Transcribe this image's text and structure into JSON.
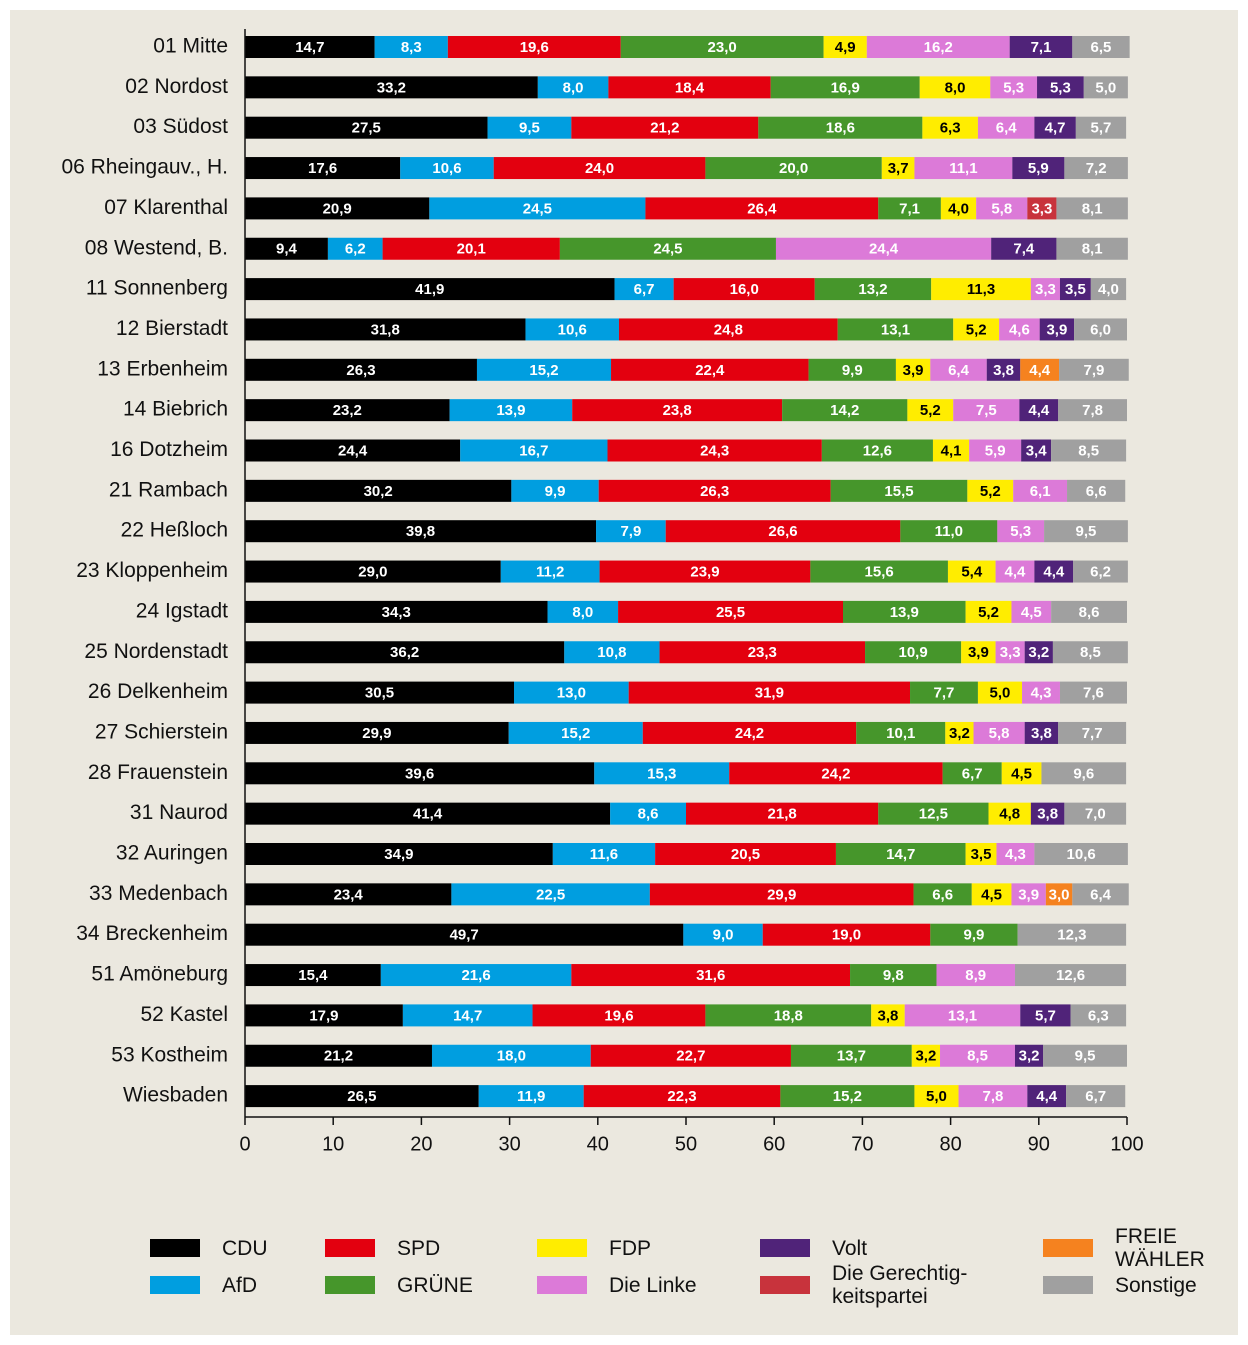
{
  "chart_data": {
    "type": "stacked-barh",
    "categories": [
      "01 Mitte",
      "02 Nordost",
      "03 Südost",
      "06 Rheingauv., H.",
      "07 Klarenthal",
      "08 Westend, B.",
      "11 Sonnenberg",
      "12 Bierstadt",
      "13 Erbenheim",
      "14 Biebrich",
      "16 Dotzheim",
      "21 Rambach",
      "22 Heßloch",
      "23 Kloppenheim",
      "24 Igstadt",
      "25 Nordenstadt",
      "26 Delkenheim",
      "27 Schierstein",
      "28 Frauenstein",
      "31 Naurod",
      "32 Auringen",
      "33 Medenbach",
      "34 Breckenheim",
      "51 Amöneburg",
      "52 Kastel",
      "53 Kostheim",
      "Wiesbaden"
    ],
    "xlim": [
      0,
      100
    ],
    "xticks": [
      0,
      10,
      20,
      30,
      40,
      50,
      60,
      70,
      80,
      90,
      100
    ],
    "series": [
      {
        "name": "CDU",
        "color": "#000000",
        "text_color": "#ffffff",
        "values": [
          14.7,
          33.2,
          27.5,
          17.6,
          20.9,
          9.4,
          41.9,
          31.8,
          26.3,
          23.2,
          24.4,
          30.2,
          39.8,
          29.0,
          34.3,
          36.2,
          30.5,
          29.9,
          39.6,
          41.4,
          34.9,
          23.4,
          49.7,
          15.4,
          17.9,
          21.2,
          26.5
        ],
        "value_labels": [
          "14,7",
          "33,2",
          "27,5",
          "17,6",
          "20,9",
          "9,4",
          "41,9",
          "31,8",
          "26,3",
          "23,2",
          "24,4",
          "30,2",
          "39,8",
          "29,0",
          "34,3",
          "36,2",
          "30,5",
          "29,9",
          "39,6",
          "41,4",
          "34,9",
          "23,4",
          "49,7",
          "15,4",
          "17,9",
          "21,2",
          "26,5"
        ]
      },
      {
        "name": "AfD",
        "color": "#009ee0",
        "text_color": "#ffffff",
        "values": [
          8.3,
          8.0,
          9.5,
          10.6,
          24.5,
          6.2,
          6.7,
          10.6,
          15.2,
          13.9,
          16.7,
          9.9,
          7.9,
          11.2,
          8.0,
          10.8,
          13.0,
          15.2,
          15.3,
          8.6,
          11.6,
          22.5,
          9.0,
          21.6,
          14.7,
          18.0,
          11.9
        ],
        "value_labels": [
          "8,3",
          "8,0",
          "9,5",
          "10,6",
          "24,5",
          "6,2",
          "6,7",
          "10,6",
          "15,2",
          "13,9",
          "16,7",
          "9,9",
          "7,9",
          "11,2",
          "8,0",
          "10,8",
          "13,0",
          "15,2",
          "15,3",
          "8,6",
          "11,6",
          "22,5",
          "9,0",
          "21,6",
          "14,7",
          "18,0",
          "11,9"
        ]
      },
      {
        "name": "SPD",
        "color": "#e3000f",
        "text_color": "#ffffff",
        "values": [
          19.6,
          18.4,
          21.2,
          24.0,
          26.4,
          20.1,
          16.0,
          24.8,
          22.4,
          23.8,
          24.3,
          26.3,
          26.6,
          23.9,
          25.5,
          23.3,
          31.9,
          24.2,
          24.2,
          21.8,
          20.5,
          29.9,
          19.0,
          31.6,
          19.6,
          22.7,
          22.3
        ],
        "value_labels": [
          "19,6",
          "18,4",
          "21,2",
          "24,0",
          "26,4",
          "20,1",
          "16,0",
          "24,8",
          "22,4",
          "23,8",
          "24,3",
          "26,3",
          "26,6",
          "23,9",
          "25,5",
          "23,3",
          "31,9",
          "24,2",
          "24,2",
          "21,8",
          "20,5",
          "29,9",
          "19,0",
          "31,6",
          "19,6",
          "22,7",
          "22,3"
        ]
      },
      {
        "name": "GRÜNE",
        "color": "#46962b",
        "text_color": "#ffffff",
        "values": [
          23.0,
          16.9,
          18.6,
          20.0,
          7.1,
          24.5,
          13.2,
          13.1,
          9.9,
          14.2,
          12.6,
          15.5,
          11.0,
          15.6,
          13.9,
          10.9,
          7.7,
          10.1,
          6.7,
          12.5,
          14.7,
          6.6,
          9.9,
          9.8,
          18.8,
          13.7,
          15.2
        ],
        "value_labels": [
          "23,0",
          "16,9",
          "18,6",
          "20,0",
          "7,1",
          "24,5",
          "13,2",
          "13,1",
          "9,9",
          "14,2",
          "12,6",
          "15,5",
          "11,0",
          "15,6",
          "13,9",
          "10,9",
          "7,7",
          "10,1",
          "6,7",
          "12,5",
          "14,7",
          "6,6",
          "9,9",
          "9,8",
          "18,8",
          "13,7",
          "15,2"
        ]
      },
      {
        "name": "FDP",
        "color": "#ffed00",
        "text_color": "#000000",
        "values": [
          4.9,
          8.0,
          6.3,
          3.7,
          4.0,
          null,
          11.3,
          5.2,
          3.9,
          5.2,
          4.1,
          5.2,
          null,
          5.4,
          5.2,
          3.9,
          5.0,
          3.2,
          4.5,
          4.8,
          3.5,
          4.5,
          null,
          null,
          3.8,
          3.2,
          5.0
        ],
        "value_labels": [
          "4,9",
          "8,0",
          "6,3",
          "3,7",
          "4,0",
          null,
          "11,3",
          "5,2",
          "3,9",
          "5,2",
          "4,1",
          "5,2",
          null,
          "5,4",
          "5,2",
          "3,9",
          "5,0",
          "3,2",
          "4,5",
          "4,8",
          "3,5",
          "4,5",
          null,
          null,
          "3,8",
          "3,2",
          "5,0"
        ]
      },
      {
        "name": "Die Linke",
        "color": "#dc7ad8",
        "text_color": "#ffffff",
        "values": [
          16.2,
          5.3,
          6.4,
          11.1,
          5.8,
          24.4,
          3.3,
          4.6,
          6.4,
          7.5,
          5.9,
          6.1,
          5.3,
          4.4,
          4.5,
          3.3,
          4.3,
          5.8,
          null,
          null,
          4.3,
          3.9,
          null,
          8.9,
          13.1,
          8.5,
          7.8
        ],
        "value_labels": [
          "16,2",
          "5,3",
          "6,4",
          "11,1",
          "5,8",
          "24,4",
          "3,3",
          "4,6",
          "6,4",
          "7,5",
          "5,9",
          "6,1",
          "5,3",
          "4,4",
          "4,5",
          "3,3",
          "4,3",
          "5,8",
          null,
          null,
          "4,3",
          "3,9",
          null,
          "8,9",
          "13,1",
          "8,5",
          "7,8"
        ]
      },
      {
        "name": "Volt",
        "color": "#502379",
        "text_color": "#ffffff",
        "values": [
          7.1,
          5.3,
          4.7,
          5.9,
          null,
          7.4,
          3.5,
          3.9,
          3.8,
          4.4,
          3.4,
          null,
          null,
          4.4,
          null,
          3.2,
          null,
          3.8,
          null,
          3.8,
          null,
          null,
          null,
          null,
          5.7,
          3.2,
          4.4
        ],
        "value_labels": [
          "7,1",
          "5,3",
          "4,7",
          "5,9",
          null,
          "7,4",
          "3,5",
          "3,9",
          "3,8",
          "4,4",
          "3,4",
          null,
          null,
          "4,4",
          null,
          "3,2",
          null,
          "3,8",
          null,
          "3,8",
          null,
          null,
          null,
          null,
          "5,7",
          "3,2",
          "4,4"
        ]
      },
      {
        "name": "Die Gerechtig-keitspartei",
        "color": "#c8333c",
        "text_color": "#ffffff",
        "values": [
          null,
          null,
          null,
          null,
          3.3,
          null,
          null,
          null,
          null,
          null,
          null,
          null,
          null,
          null,
          null,
          null,
          null,
          null,
          null,
          null,
          null,
          null,
          null,
          null,
          null,
          null,
          null
        ],
        "value_labels": [
          null,
          null,
          null,
          null,
          "3,3",
          null,
          null,
          null,
          null,
          null,
          null,
          null,
          null,
          null,
          null,
          null,
          null,
          null,
          null,
          null,
          null,
          null,
          null,
          null,
          null,
          null,
          null
        ]
      },
      {
        "name": "FREIE WÄHLER",
        "color": "#f5821f",
        "text_color": "#ffffff",
        "values": [
          null,
          null,
          null,
          null,
          null,
          null,
          null,
          null,
          4.4,
          null,
          null,
          null,
          null,
          null,
          null,
          null,
          null,
          null,
          null,
          null,
          null,
          3.0,
          null,
          null,
          null,
          null,
          null
        ],
        "value_labels": [
          null,
          null,
          null,
          null,
          null,
          null,
          null,
          null,
          "4,4",
          null,
          null,
          null,
          null,
          null,
          null,
          null,
          null,
          null,
          null,
          null,
          null,
          "3,0",
          null,
          null,
          null,
          null,
          null
        ]
      },
      {
        "name": "Sonstige",
        "color": "#a0a0a0",
        "text_color": "#ffffff",
        "values": [
          6.5,
          5.0,
          5.7,
          7.2,
          8.1,
          8.1,
          4.0,
          6.0,
          7.9,
          7.8,
          8.5,
          6.6,
          9.5,
          6.2,
          8.6,
          8.5,
          7.6,
          7.7,
          9.6,
          7.0,
          10.6,
          6.4,
          12.3,
          12.6,
          6.3,
          9.5,
          6.7
        ],
        "value_labels": [
          "6,5",
          "5,0",
          "5,7",
          "7,2",
          "8,1",
          "8,1",
          "4,0",
          "6,0",
          "7,9",
          "7,8",
          "8,5",
          "6,6",
          "9,5",
          "6,2",
          "8,6",
          "8,5",
          "7,6",
          "7,7",
          "9,6",
          "7,0",
          "10,6",
          "6,4",
          "12,3",
          "12,6",
          "6,3",
          "9,5",
          "6,7"
        ]
      }
    ]
  }
}
